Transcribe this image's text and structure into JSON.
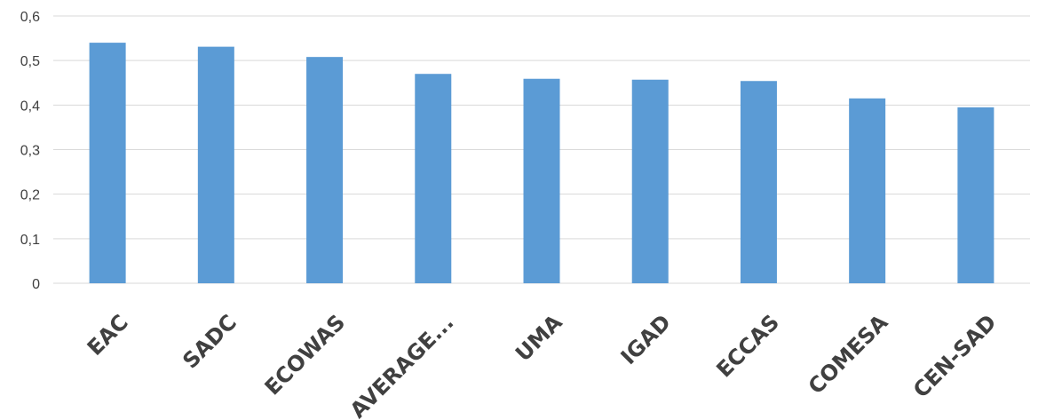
{
  "chart_data": {
    "type": "bar",
    "title": "",
    "xlabel": "",
    "ylabel": "",
    "categories": [
      "EAC",
      "SADC",
      "ECOWAS",
      "AVERAGE...",
      "UMA",
      "IGAD",
      "ECCAS",
      "COMESA",
      "CEN-SAD"
    ],
    "values": [
      0.54,
      0.531,
      0.508,
      0.47,
      0.459,
      0.457,
      0.454,
      0.415,
      0.395
    ],
    "ylim": [
      0,
      0.6
    ],
    "yticks": [
      "0",
      "0,1",
      "0,2",
      "0,3",
      "0,4",
      "0,5",
      "0,6"
    ],
    "grid": true,
    "legend": "none",
    "bar_color": "#5b9bd5",
    "grid_color": "#d9d9d9",
    "text_color": "#404040"
  }
}
